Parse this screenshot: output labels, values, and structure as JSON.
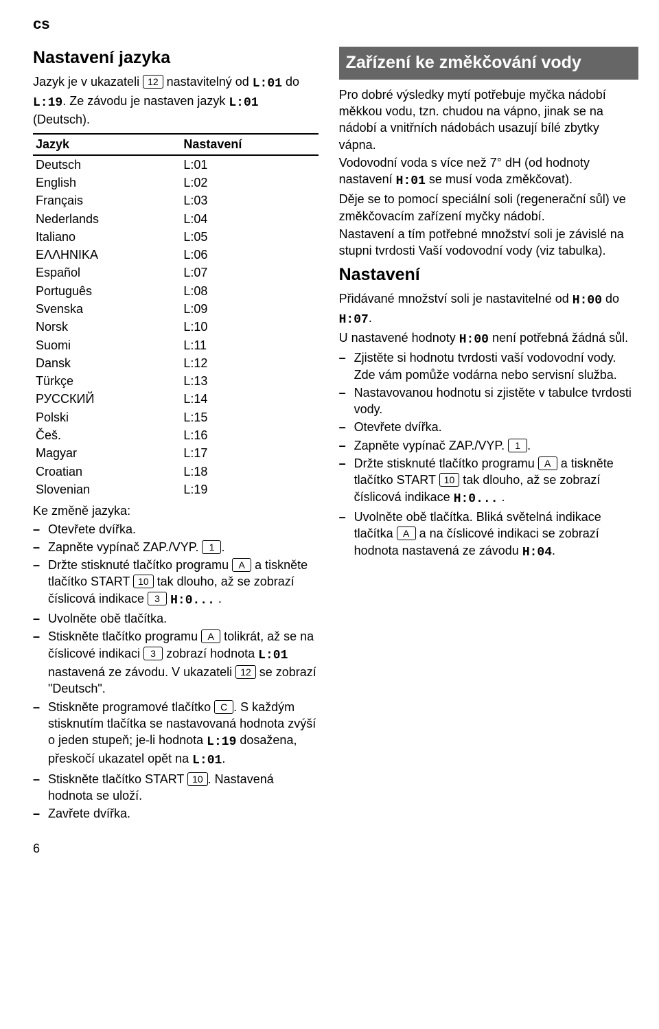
{
  "lang_code": "cs",
  "left": {
    "heading": "Nastavení jazyka",
    "intro": [
      {
        "t": "text",
        "v": "Jazyk je v ukazateli "
      },
      {
        "t": "btn",
        "v": "12"
      },
      {
        "t": "text",
        "v": " nastavitelný od "
      },
      {
        "t": "seg",
        "v": "L:01"
      },
      {
        "t": "text",
        "v": " do "
      },
      {
        "t": "seg",
        "v": "L:19"
      },
      {
        "t": "text",
        "v": ". Ze závodu je nastaven jazyk "
      },
      {
        "t": "seg",
        "v": "L:01"
      },
      {
        "t": "text",
        "v": " (Deutsch)."
      }
    ],
    "table": {
      "columns": [
        "Jazyk",
        "Nastavení"
      ],
      "rows": [
        [
          "Deutsch",
          "L:01"
        ],
        [
          "English",
          "L:02"
        ],
        [
          "Français",
          "L:03"
        ],
        [
          "Nederlands",
          "L:04"
        ],
        [
          "Italiano",
          "L:05"
        ],
        [
          "EΛΛHNIKA",
          "L:06"
        ],
        [
          "Español",
          "L:07"
        ],
        [
          "Português",
          "L:08"
        ],
        [
          "Svenska",
          "L:09"
        ],
        [
          "Norsk",
          "L:10"
        ],
        [
          "Suomi",
          "L:11"
        ],
        [
          "Dansk",
          "L:12"
        ],
        [
          "Türkçe",
          "L:13"
        ],
        [
          "РУССКИЙ",
          "L:14"
        ],
        [
          "Polski",
          "L:15"
        ],
        [
          "Češ.",
          "L:16"
        ],
        [
          "Magyar",
          "L:17"
        ],
        [
          "Croatian",
          "L:18"
        ],
        [
          "Slovenian",
          "L:19"
        ]
      ]
    },
    "subhead": "Ke změně jazyka:",
    "steps": [
      [
        {
          "t": "text",
          "v": "Otevřete dvířka."
        }
      ],
      [
        {
          "t": "text",
          "v": "Zapněte vypínač ZAP./VYP. "
        },
        {
          "t": "btn",
          "v": "1"
        },
        {
          "t": "text",
          "v": "."
        }
      ],
      [
        {
          "t": "text",
          "v": "Držte stisknuté tlačítko programu "
        },
        {
          "t": "btn",
          "v": "A"
        },
        {
          "t": "text",
          "v": " a tiskněte tlačítko START "
        },
        {
          "t": "btn",
          "v": "10"
        },
        {
          "t": "text",
          "v": " tak dlouho, až se zobrazí číslicová indikace "
        },
        {
          "t": "btn",
          "v": "3"
        },
        {
          "t": "text",
          "v": " "
        },
        {
          "t": "seg",
          "v": "H:0..."
        },
        {
          "t": "text",
          "v": " ."
        }
      ],
      [
        {
          "t": "text",
          "v": "Uvolněte obě tlačítka."
        }
      ],
      [
        {
          "t": "text",
          "v": "Stiskněte tlačítko programu "
        },
        {
          "t": "btn",
          "v": "A"
        },
        {
          "t": "text",
          "v": " tolikrát, až se na číslicové indikaci "
        },
        {
          "t": "btn",
          "v": "3"
        },
        {
          "t": "text",
          "v": " zobrazí hodnota "
        },
        {
          "t": "seg",
          "v": "L:01"
        },
        {
          "t": "text",
          "v": " nastavená ze závodu. V ukazateli "
        },
        {
          "t": "btn",
          "v": "12"
        },
        {
          "t": "text",
          "v": " se zobrazí \"Deutsch\"."
        }
      ],
      [
        {
          "t": "text",
          "v": "Stiskněte programové tlačítko "
        },
        {
          "t": "btn",
          "v": "C"
        },
        {
          "t": "text",
          "v": ". S každým stisknutím tlačítka se nastavovaná hodnota zvýší o jeden stupeň; je-li hodnota "
        },
        {
          "t": "seg",
          "v": "L:19"
        },
        {
          "t": "text",
          "v": " dosažena, přeskočí ukazatel opět na "
        },
        {
          "t": "seg",
          "v": "L:01"
        },
        {
          "t": "text",
          "v": "."
        }
      ],
      [
        {
          "t": "text",
          "v": "Stiskněte tlačítko START "
        },
        {
          "t": "btn",
          "v": "10"
        },
        {
          "t": "text",
          "v": ". Nastavená hodnota se uloží."
        }
      ],
      [
        {
          "t": "text",
          "v": "Zavřete dvířka."
        }
      ]
    ]
  },
  "right": {
    "section_title": "Zařízení ke změkčování vody",
    "para": [
      [
        {
          "t": "text",
          "v": "Pro dobré výsledky mytí potřebuje myčka nádobí měkkou vodu, tzn. chudou na vápno, jinak se na nádobí a vnitřních nádobách usazují bílé zbytky vápna."
        }
      ],
      [
        {
          "t": "text",
          "v": "Vodovodní voda s více než 7° dH (od hodnoty nastavení "
        },
        {
          "t": "seg",
          "v": "H:01"
        },
        {
          "t": "text",
          "v": " se musí voda změkčovat)."
        }
      ],
      [
        {
          "t": "text",
          "v": "Děje se to pomocí speciální soli (regenerační sůl) ve změkčovacím zařízení myčky nádobí."
        }
      ],
      [
        {
          "t": "text",
          "v": "Nastavení a tím potřebné množství soli je závislé na stupni tvrdosti Vaší vodovodní vody (viz tabulka)."
        }
      ]
    ],
    "heading2": "Nastavení",
    "para2": [
      [
        {
          "t": "text",
          "v": "Přidávané množství soli je nastavitelné od "
        },
        {
          "t": "seg",
          "v": "H:00"
        },
        {
          "t": "text",
          "v": " do "
        },
        {
          "t": "seg",
          "v": "H:07"
        },
        {
          "t": "text",
          "v": "."
        }
      ],
      [
        {
          "t": "text",
          "v": "U nastavené hodnoty "
        },
        {
          "t": "seg",
          "v": "H:00"
        },
        {
          "t": "text",
          "v": " není potřebná žádná sůl."
        }
      ]
    ],
    "steps2": [
      [
        {
          "t": "text",
          "v": "Zjistěte si hodnotu tvrdosti vaší vodovodní vody. Zde vám pomůže vodárna nebo servisní služba."
        }
      ],
      [
        {
          "t": "text",
          "v": "Nastavovanou hodnotu si zjistěte v tabulce tvrdosti vody."
        }
      ],
      [
        {
          "t": "text",
          "v": "Otevřete dvířka."
        }
      ],
      [
        {
          "t": "text",
          "v": "Zapněte vypínač ZAP./VYP. "
        },
        {
          "t": "btn",
          "v": "1"
        },
        {
          "t": "text",
          "v": "."
        }
      ],
      [
        {
          "t": "text",
          "v": "Držte stisknuté tlačítko programu "
        },
        {
          "t": "btn",
          "v": "A"
        },
        {
          "t": "text",
          "v": " a tiskněte tlačítko START "
        },
        {
          "t": "btn",
          "v": "10"
        },
        {
          "t": "text",
          "v": " tak dlouho, až se zobrazí číslicová indikace "
        },
        {
          "t": "seg",
          "v": "H:0..."
        },
        {
          "t": "text",
          "v": " ."
        }
      ],
      [
        {
          "t": "text",
          "v": "Uvolněte obě tlačítka. Bliká světelná indikace tlačítka "
        },
        {
          "t": "btn",
          "v": "A"
        },
        {
          "t": "text",
          "v": " a na číslicové indikaci se zobrazí hodnota nastavená ze závodu "
        },
        {
          "t": "seg",
          "v": "H:04"
        },
        {
          "t": "text",
          "v": "."
        }
      ]
    ]
  },
  "pagenum": "6"
}
